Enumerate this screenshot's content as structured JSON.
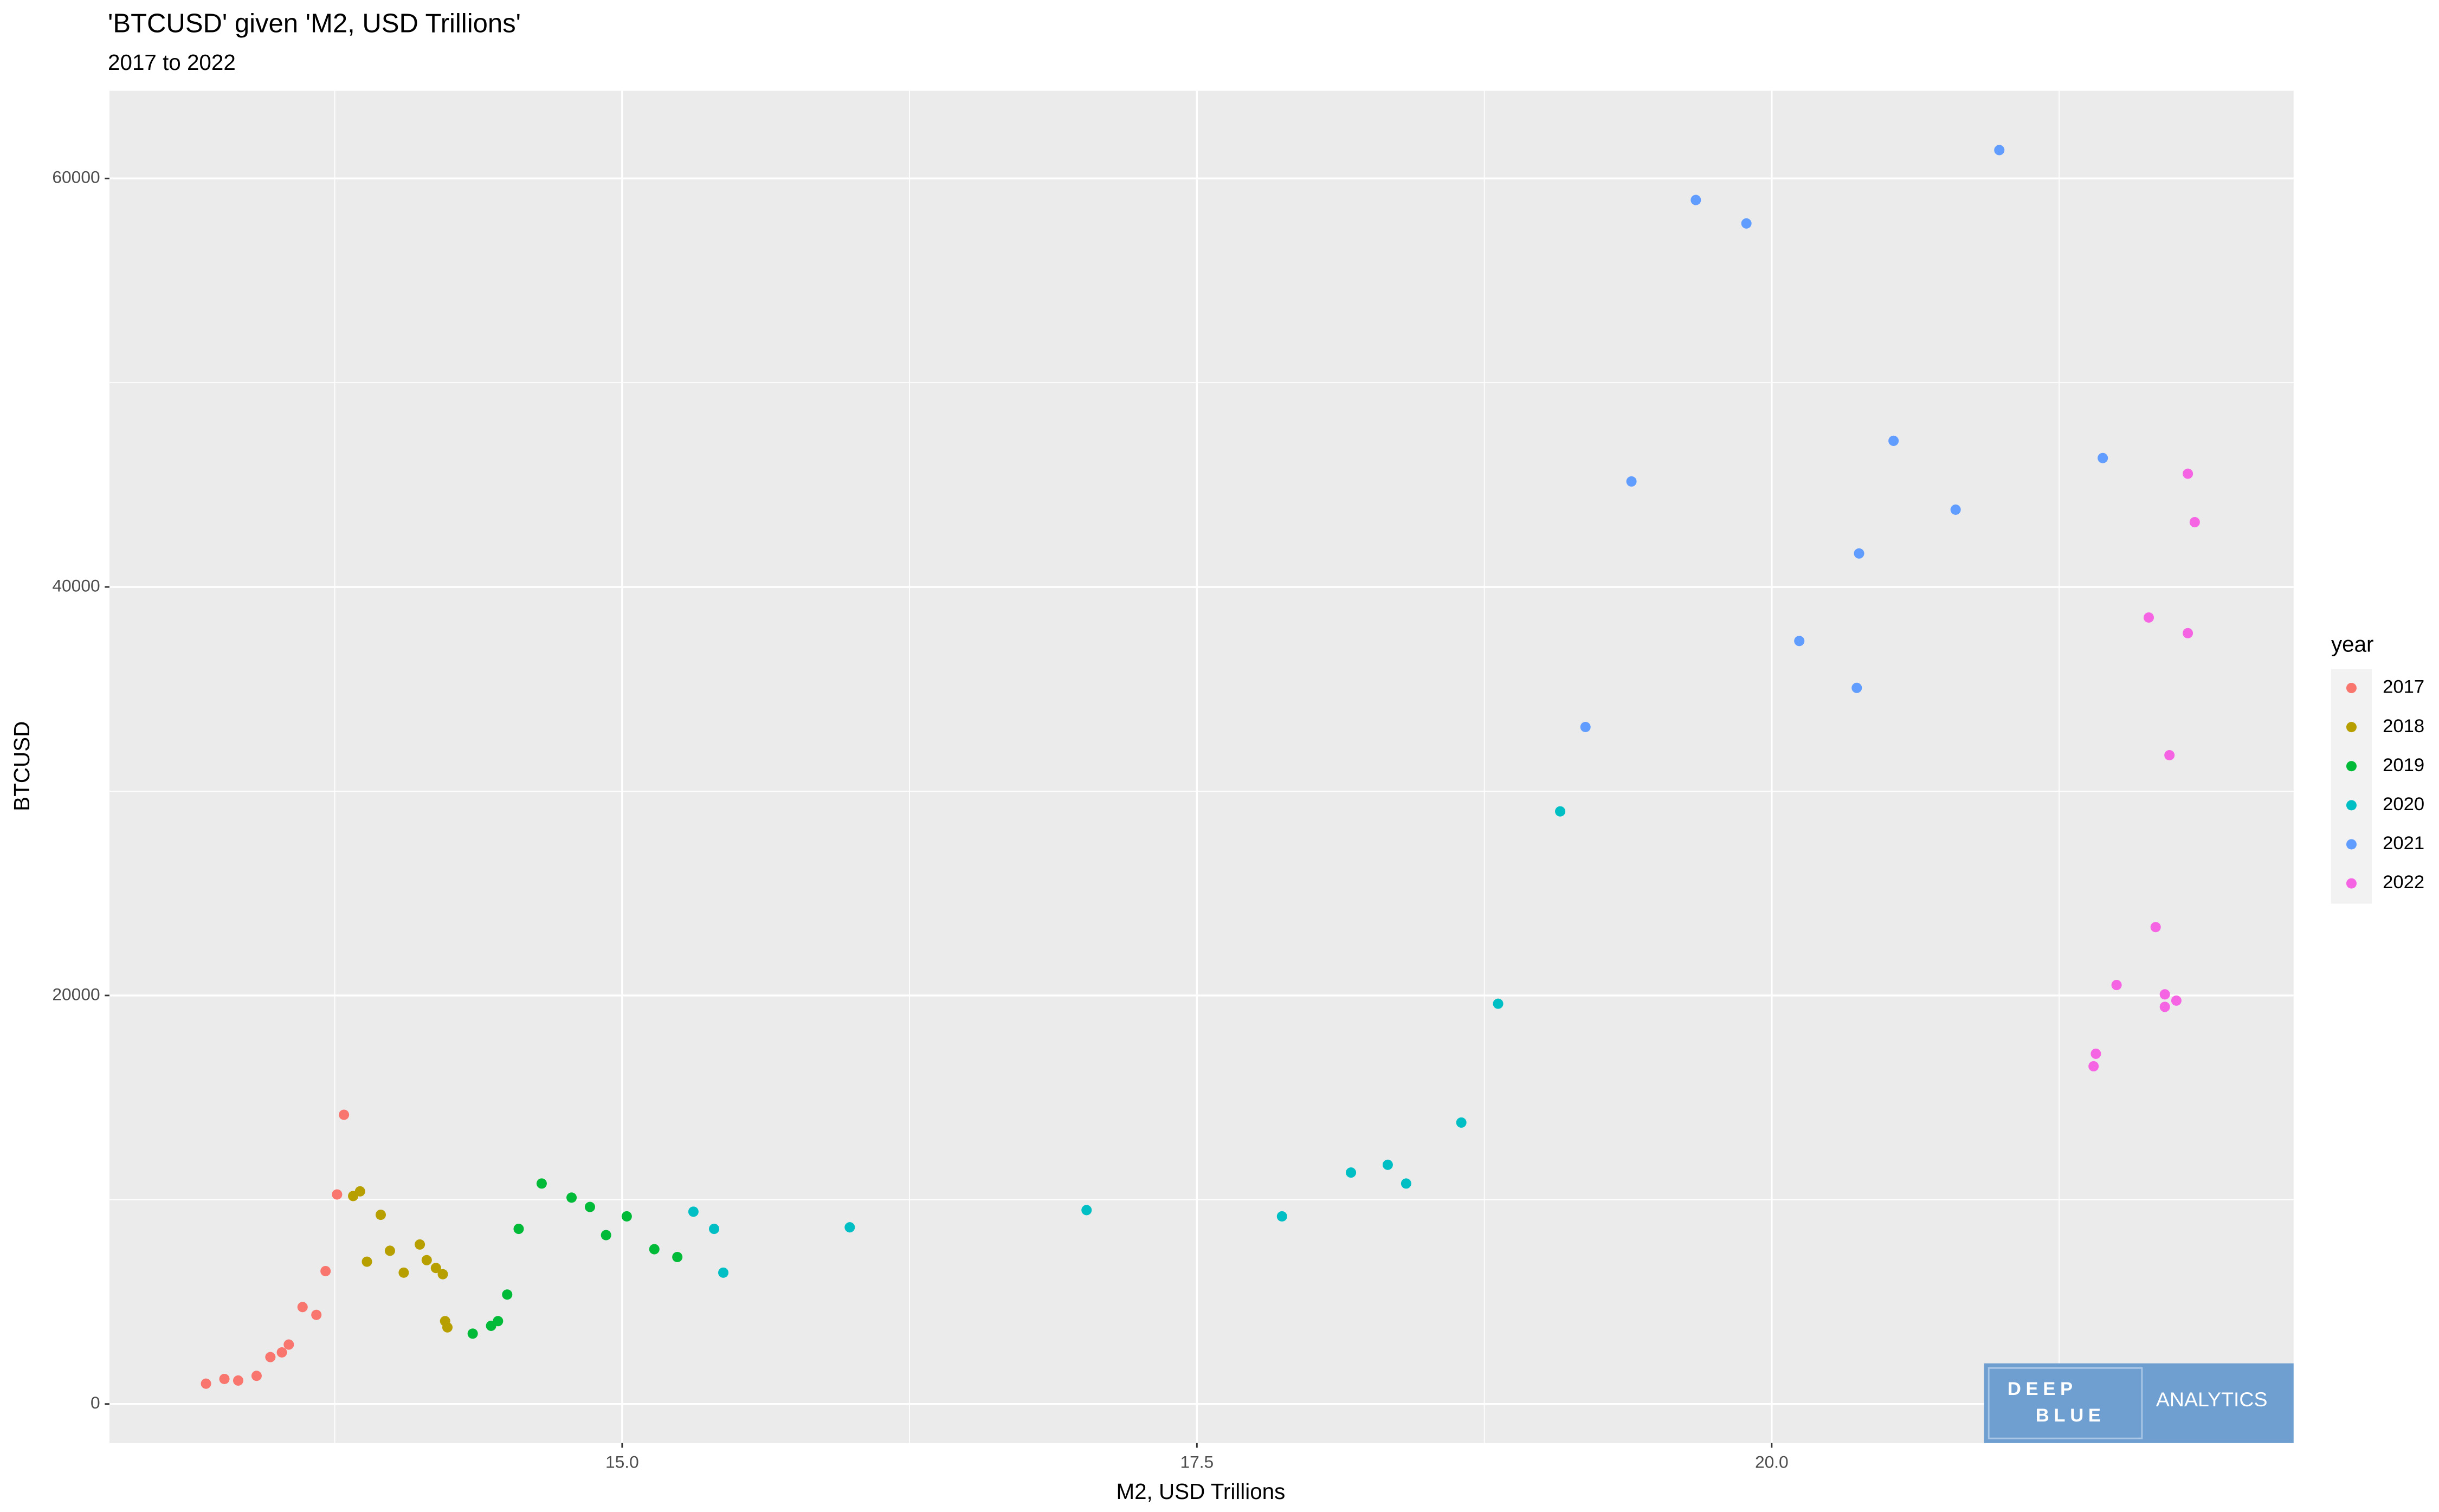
{
  "chart_data": {
    "type": "scatter",
    "title": "'BTCUSD' given 'M2, USD Trillions'",
    "subtitle": "2017 to 2022",
    "x_label": "M2, USD Trillions",
    "y_label": "BTCUSD",
    "legend_title": "year",
    "legend_position": "right",
    "grid": true,
    "xlim": [
      12.77,
      22.27
    ],
    "ylim": [
      -1913,
      64290
    ],
    "xticks": [
      {
        "value": 15,
        "label": "15.0"
      },
      {
        "value": 17.5,
        "label": "17.5"
      },
      {
        "value": 20,
        "label": "20.0"
      }
    ],
    "yticks": [
      0,
      20000,
      40000,
      60000
    ],
    "x_minor_grid": [
      13.75,
      16.25,
      18.75,
      21.25
    ],
    "y_minor_grid": [
      10000,
      30000,
      50000
    ],
    "series": [
      {
        "name": "2017",
        "color": "#F8766D",
        "x": [
          13.19,
          13.27,
          13.33,
          13.41,
          13.47,
          13.52,
          13.55,
          13.61,
          13.67,
          13.71,
          13.76,
          13.79
        ],
        "values": [
          995,
          1225,
          1148,
          1378,
          2296,
          2526,
          2909,
          4746,
          4363,
          6506,
          10257,
          14160
        ]
      },
      {
        "name": "2018",
        "color": "#B79F00",
        "x": [
          13.83,
          13.86,
          13.95,
          13.89,
          13.99,
          14.05,
          14.12,
          14.15,
          14.19,
          14.22,
          14.23,
          14.24
        ],
        "values": [
          10181,
          10410,
          9262,
          6966,
          7502,
          6430,
          7808,
          7042,
          6659,
          6353,
          4057,
          3751
        ]
      },
      {
        "name": "2019",
        "color": "#00BA38",
        "x": [
          14.35,
          14.43,
          14.46,
          14.5,
          14.55,
          14.65,
          14.78,
          14.86,
          14.93,
          15.02,
          15.14,
          15.24
        ],
        "values": [
          3444,
          3827,
          4057,
          5358,
          8573,
          10793,
          10104,
          9645,
          8267,
          9186,
          7578,
          7195
        ]
      },
      {
        "name": "2020",
        "color": "#00BFC4",
        "x": [
          15.31,
          15.4,
          15.44,
          15.99,
          17.02,
          17.87,
          18.17,
          18.33,
          18.41,
          18.65,
          18.81,
          19.08
        ],
        "values": [
          9415,
          8573,
          6430,
          8650,
          9492,
          9186,
          11329,
          11711,
          10793,
          13778,
          19596,
          29012
        ]
      },
      {
        "name": "2021",
        "color": "#619CFF",
        "x": [
          19.19,
          19.39,
          19.67,
          19.89,
          20.12,
          20.37,
          20.38,
          20.53,
          20.8,
          20.99,
          21.44
        ],
        "values": [
          33144,
          45165,
          58945,
          57797,
          37355,
          35059,
          41640,
          47154,
          43785,
          61389,
          46311
        ]
      },
      {
        "name": "2022",
        "color": "#F564E3",
        "x": [
          21.64,
          21.81,
          21.84,
          21.81,
          21.73,
          21.67,
          21.5,
          21.71,
          21.76,
          21.71,
          21.41,
          21.4
        ],
        "values": [
          38503,
          45544,
          43171,
          37738,
          31764,
          23347,
          20513,
          20055,
          19748,
          19442,
          17146,
          16534
        ]
      }
    ]
  },
  "logo": {
    "line1": "DEEP",
    "line2": "BLUE",
    "text": "ANALYTICS"
  }
}
